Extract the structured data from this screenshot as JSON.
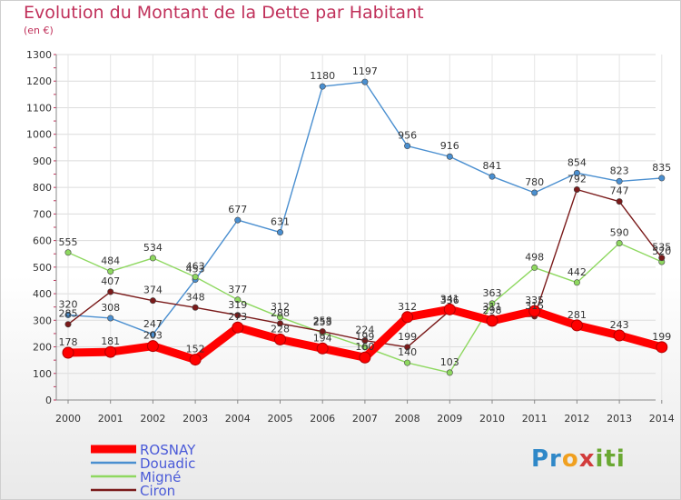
{
  "chart_data": {
    "type": "line",
    "title": "Evolution du Montant de la Dette par Habitant",
    "subtitle": "(en €)",
    "x": [
      "2000",
      "2001",
      "2002",
      "2003",
      "2004",
      "2005",
      "2006",
      "2007",
      "2008",
      "2009",
      "2010",
      "2011",
      "2012",
      "2013",
      "2014"
    ],
    "ylim": [
      0,
      1300
    ],
    "yticks": [
      0,
      100,
      200,
      300,
      400,
      500,
      600,
      700,
      800,
      900,
      1000,
      1100,
      1200,
      1300
    ],
    "grid": true,
    "legend_position": "bottom-left",
    "series": [
      {
        "name": "ROSNAY",
        "color": "#ff0000",
        "values": [
          178,
          181,
          203,
          152,
          273,
          228,
          194,
          160,
          312,
          341,
          298,
          335,
          281,
          243,
          199
        ]
      },
      {
        "name": "Douadic",
        "color": "#4a8fd0",
        "values": [
          320,
          308,
          247,
          453,
          677,
          631,
          1180,
          1197,
          956,
          916,
          841,
          780,
          854,
          823,
          835
        ]
      },
      {
        "name": "Migné",
        "color": "#8ed860",
        "values": [
          555,
          484,
          534,
          463,
          377,
          312,
          253,
          199,
          140,
          103,
          363,
          498,
          442,
          590,
          520
        ]
      },
      {
        "name": "Ciron",
        "color": "#7a1a1a",
        "values": [
          285,
          407,
          374,
          348,
          319,
          288,
          258,
          224,
          199,
          336,
          311,
          315,
          792,
          747,
          535
        ]
      }
    ]
  },
  "logo": {
    "text": "Proxiti"
  }
}
